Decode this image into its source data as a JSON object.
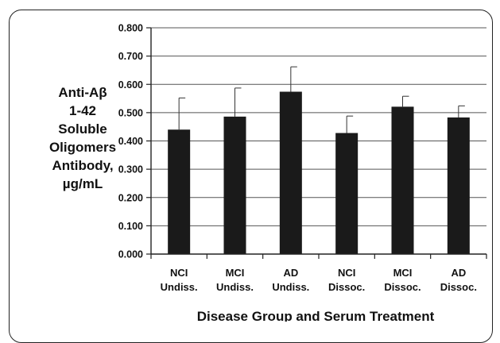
{
  "chart_data": {
    "type": "bar",
    "title": "",
    "ylabel_lines": [
      "Anti-Aβ",
      "1-42",
      "Soluble",
      "Oligomers",
      "Antibody,",
      "µg/mL"
    ],
    "xlabel": "Disease Group and Serum Treatment",
    "categories": [
      [
        "NCI",
        "Undiss."
      ],
      [
        "MCI",
        "Undiss."
      ],
      [
        "AD",
        "Undiss."
      ],
      [
        "NCI",
        "Dissoc."
      ],
      [
        "MCI",
        "Dissoc."
      ],
      [
        "AD",
        "Dissoc."
      ]
    ],
    "values": [
      0.44,
      0.486,
      0.574,
      0.428,
      0.521,
      0.483
    ],
    "error_upper": [
      0.552,
      0.587,
      0.662,
      0.488,
      0.558,
      0.524
    ],
    "ylim": [
      0.0,
      0.8
    ],
    "yticks": [
      "0.000",
      "0.100",
      "0.200",
      "0.300",
      "0.400",
      "0.500",
      "0.600",
      "0.700",
      "0.800"
    ],
    "grid": true,
    "legend": "none",
    "bar_color": "#1a1a1a",
    "grid_color": "#555555"
  }
}
